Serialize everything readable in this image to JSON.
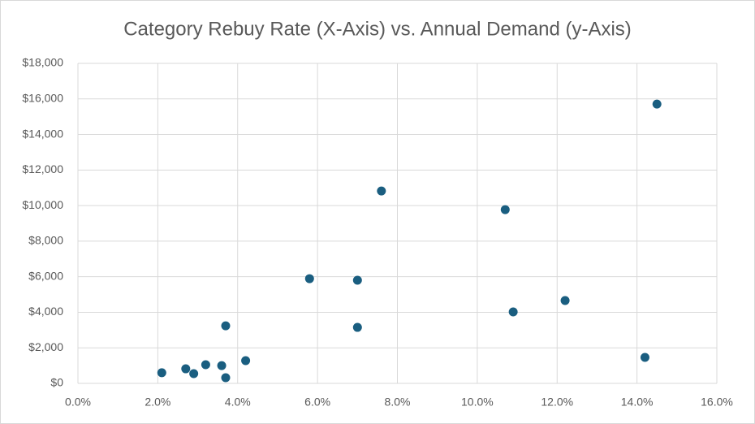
{
  "chart_data": {
    "type": "scatter",
    "title": "Category Rebuy Rate (X-Axis) vs. Annual Demand (y-Axis)",
    "x": [
      2.1,
      2.7,
      2.9,
      3.2,
      3.6,
      3.7,
      3.7,
      4.2,
      5.8,
      7.0,
      7.0,
      7.6,
      10.7,
      10.9,
      12.2,
      14.2,
      14.5
    ],
    "values": [
      600,
      820,
      550,
      1050,
      1000,
      320,
      3240,
      1280,
      5890,
      5800,
      3150,
      10820,
      9770,
      4020,
      4660,
      1460,
      15710
    ],
    "color": "#1a5e80",
    "xlim": [
      0,
      16
    ],
    "xticks": [
      {
        "value": 0,
        "label": "0.0%"
      },
      {
        "value": 2,
        "label": "2.0%"
      },
      {
        "value": 4,
        "label": "4.0%"
      },
      {
        "value": 6,
        "label": "6.0%"
      },
      {
        "value": 8,
        "label": "8.0%"
      },
      {
        "value": 10,
        "label": "10.0%"
      },
      {
        "value": 12,
        "label": "12.0%"
      },
      {
        "value": 14,
        "label": "14.0%"
      },
      {
        "value": 16,
        "label": "16.0%"
      }
    ],
    "ylim": [
      0,
      18000
    ],
    "yticks": [
      {
        "value": 0,
        "label": "$0"
      },
      {
        "value": 2000,
        "label": "$2,000"
      },
      {
        "value": 4000,
        "label": "$4,000"
      },
      {
        "value": 6000,
        "label": "$6,000"
      },
      {
        "value": 8000,
        "label": "$8,000"
      },
      {
        "value": 10000,
        "label": "$10,000"
      },
      {
        "value": 12000,
        "label": "$12,000"
      },
      {
        "value": 14000,
        "label": "$14,000"
      },
      {
        "value": 16000,
        "label": "$16,000"
      },
      {
        "value": 18000,
        "label": "$18,000"
      }
    ],
    "grid": true
  }
}
